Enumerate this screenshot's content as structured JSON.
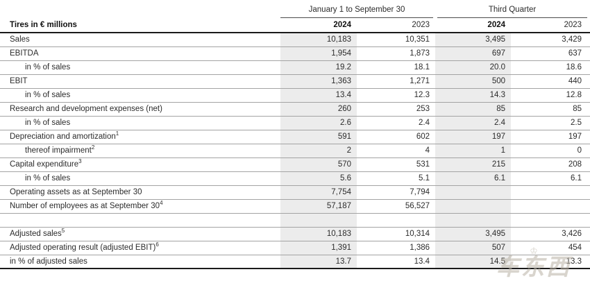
{
  "table": {
    "unit_label": "Tires in € millions",
    "col_groups": [
      {
        "label": "January 1 to September 30"
      },
      {
        "label": "Third Quarter"
      }
    ],
    "year_cols": [
      "2024",
      "2023",
      "2024",
      "2023"
    ],
    "rows": [
      {
        "label": "Sales",
        "sup": "",
        "indent": false,
        "values": [
          "10,183",
          "10,351",
          "3,495",
          "3,429"
        ]
      },
      {
        "label": "EBITDA",
        "sup": "",
        "indent": false,
        "values": [
          "1,954",
          "1,873",
          "697",
          "637"
        ]
      },
      {
        "label": "in % of sales",
        "sup": "",
        "indent": true,
        "values": [
          "19.2",
          "18.1",
          "20.0",
          "18.6"
        ]
      },
      {
        "label": "EBIT",
        "sup": "",
        "indent": false,
        "values": [
          "1,363",
          "1,271",
          "500",
          "440"
        ]
      },
      {
        "label": "in % of sales",
        "sup": "",
        "indent": true,
        "values": [
          "13.4",
          "12.3",
          "14.3",
          "12.8"
        ]
      },
      {
        "label": "Research and development expenses (net)",
        "sup": "",
        "indent": false,
        "values": [
          "260",
          "253",
          "85",
          "85"
        ]
      },
      {
        "label": "in % of sales",
        "sup": "",
        "indent": true,
        "values": [
          "2.6",
          "2.4",
          "2.4",
          "2.5"
        ]
      },
      {
        "label": "Depreciation and amortization",
        "sup": "1",
        "indent": false,
        "values": [
          "591",
          "602",
          "197",
          "197"
        ]
      },
      {
        "label": "thereof impairment",
        "sup": "2",
        "indent": true,
        "values": [
          "2",
          "4",
          "1",
          "0"
        ]
      },
      {
        "label": "Capital expenditure",
        "sup": "3",
        "indent": false,
        "values": [
          "570",
          "531",
          "215",
          "208"
        ]
      },
      {
        "label": "in % of sales",
        "sup": "",
        "indent": true,
        "values": [
          "5.6",
          "5.1",
          "6.1",
          "6.1"
        ]
      },
      {
        "label": "Operating assets as at September 30",
        "sup": "",
        "indent": false,
        "values": [
          "7,754",
          "7,794",
          "",
          ""
        ]
      },
      {
        "label": "Number of employees as at September 30",
        "sup": "4",
        "indent": false,
        "values": [
          "57,187",
          "56,527",
          "",
          ""
        ]
      },
      {
        "type": "spacer",
        "label": "",
        "sup": "",
        "indent": false,
        "values": [
          "",
          "",
          "",
          ""
        ]
      },
      {
        "label": "Adjusted sales",
        "sup": "5",
        "indent": false,
        "values": [
          "10,183",
          "10,314",
          "3,495",
          "3,426"
        ]
      },
      {
        "label": "Adjusted operating result (adjusted EBIT)",
        "sup": "6",
        "indent": false,
        "values": [
          "1,391",
          "1,386",
          "507",
          "454"
        ]
      },
      {
        "label": "in % of adjusted sales",
        "sup": "",
        "indent": false,
        "values": [
          "13.7",
          "13.4",
          "14.5",
          "13.3"
        ]
      }
    ],
    "shaded_columns_color": "#ececec",
    "accent_line_color": "#1a1a1a"
  },
  "watermark": {
    "crown": "♔",
    "text": "车东西"
  }
}
